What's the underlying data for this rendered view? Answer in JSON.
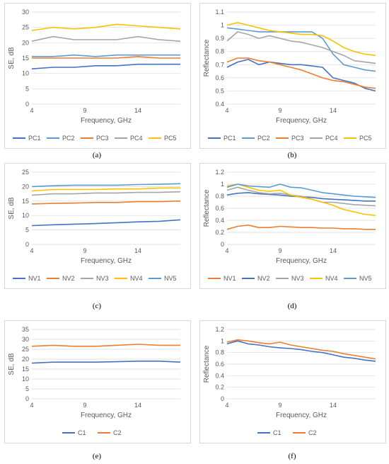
{
  "captions": [
    "(a)",
    "(b)",
    "(c)",
    "(d)",
    "(e)",
    "(f)"
  ],
  "chart_data": [
    {
      "type": "line",
      "caption": "(a)",
      "title": "",
      "xlabel": "Frequency, GHz",
      "ylabel": "SE, dB",
      "xlim": [
        4,
        18
      ],
      "ylim": [
        0,
        30
      ],
      "xticks": [
        4,
        9,
        14
      ],
      "yticks": [
        0,
        5,
        10,
        15,
        20,
        25,
        30
      ],
      "grid": true,
      "legend": "bottom",
      "x": [
        4,
        6,
        8,
        10,
        12,
        14,
        16,
        18
      ],
      "series": [
        {
          "name": "PC1",
          "color": "#4472c4",
          "values": [
            11.5,
            12,
            12,
            12.5,
            12.5,
            13,
            13,
            13
          ]
        },
        {
          "name": "PC2",
          "color": "#5b9bd5",
          "values": [
            15.5,
            15.5,
            16,
            15.5,
            16,
            16,
            16,
            16
          ]
        },
        {
          "name": "PC3",
          "color": "#ed7d31",
          "values": [
            15,
            15,
            15,
            15,
            15,
            15.5,
            15,
            15
          ]
        },
        {
          "name": "PC4",
          "color": "#a5a5a5",
          "values": [
            20.5,
            22,
            21,
            21,
            21,
            22,
            21,
            20.5
          ]
        },
        {
          "name": "PC5",
          "color": "#ffc000",
          "values": [
            24,
            25,
            24.5,
            25,
            26,
            25.5,
            25,
            24.5
          ]
        }
      ]
    },
    {
      "type": "line",
      "caption": "(b)",
      "title": "",
      "xlabel": "Frequency, GHz",
      "ylabel": "Reflectance",
      "xlim": [
        4,
        18
      ],
      "ylim": [
        0.4,
        1.1
      ],
      "xticks": [
        4,
        9,
        14
      ],
      "yticks": [
        0.4,
        0.5,
        0.6,
        0.7,
        0.8,
        0.9,
        1,
        1.1
      ],
      "grid": true,
      "legend": "bottom",
      "x": [
        4,
        5,
        6,
        7,
        8,
        9,
        10,
        11,
        12,
        13,
        14,
        15,
        16,
        17,
        18
      ],
      "series": [
        {
          "name": "PC1",
          "color": "#4472c4",
          "values": [
            0.68,
            0.72,
            0.74,
            0.7,
            0.72,
            0.71,
            0.7,
            0.7,
            0.69,
            0.68,
            0.6,
            0.58,
            0.56,
            0.52,
            0.5
          ]
        },
        {
          "name": "PC2",
          "color": "#5b9bd5",
          "values": [
            0.98,
            0.97,
            0.96,
            0.95,
            0.95,
            0.95,
            0.95,
            0.95,
            0.95,
            0.9,
            0.78,
            0.7,
            0.68,
            0.66,
            0.65
          ]
        },
        {
          "name": "PC3",
          "color": "#ed7d31",
          "values": [
            0.72,
            0.75,
            0.75,
            0.73,
            0.72,
            0.7,
            0.68,
            0.66,
            0.63,
            0.6,
            0.58,
            0.57,
            0.55,
            0.53,
            0.52
          ]
        },
        {
          "name": "PC4",
          "color": "#a5a5a5",
          "values": [
            0.88,
            0.95,
            0.93,
            0.9,
            0.92,
            0.9,
            0.88,
            0.87,
            0.85,
            0.83,
            0.8,
            0.77,
            0.73,
            0.72,
            0.71
          ]
        },
        {
          "name": "PC5",
          "color": "#ffc000",
          "values": [
            1.0,
            1.02,
            1.0,
            0.98,
            0.96,
            0.95,
            0.94,
            0.93,
            0.93,
            0.92,
            0.88,
            0.83,
            0.8,
            0.78,
            0.77
          ]
        }
      ]
    },
    {
      "type": "line",
      "caption": "(c)",
      "title": "",
      "xlabel": "Frequency, GHz",
      "ylabel": "SE, dB",
      "xlim": [
        4,
        18
      ],
      "ylim": [
        0,
        25
      ],
      "xticks": [
        4,
        9,
        14
      ],
      "yticks": [
        0,
        5,
        10,
        15,
        20,
        25
      ],
      "grid": true,
      "legend": "bottom",
      "x": [
        4,
        6,
        8,
        10,
        12,
        14,
        16,
        18
      ],
      "series": [
        {
          "name": "NV1",
          "color": "#4472c4",
          "values": [
            6.5,
            6.8,
            7,
            7.2,
            7.5,
            7.8,
            8,
            8.5
          ]
        },
        {
          "name": "NV2",
          "color": "#ed7d31",
          "values": [
            14,
            14.2,
            14.3,
            14.5,
            14.5,
            14.8,
            14.8,
            15
          ]
        },
        {
          "name": "NV3",
          "color": "#a5a5a5",
          "values": [
            17,
            17.5,
            17.5,
            17.8,
            17.8,
            18,
            18,
            18.2
          ]
        },
        {
          "name": "NV4",
          "color": "#ffc000",
          "values": [
            18.5,
            19,
            19,
            19,
            19.2,
            19.2,
            19.5,
            19.5
          ]
        },
        {
          "name": "NV5",
          "color": "#5b9bd5",
          "values": [
            20,
            20.3,
            20.5,
            20.5,
            20.5,
            20.7,
            20.8,
            21
          ]
        }
      ]
    },
    {
      "type": "line",
      "caption": "(d)",
      "title": "",
      "xlabel": "Frequency, GHz",
      "ylabel": "Reflectance",
      "xlim": [
        4,
        18
      ],
      "ylim": [
        0,
        1.2
      ],
      "xticks": [
        4,
        9,
        14
      ],
      "yticks": [
        0,
        0.2,
        0.4,
        0.6,
        0.8,
        1,
        1.2
      ],
      "grid": true,
      "legend": "bottom",
      "x": [
        4,
        5,
        6,
        7,
        8,
        9,
        10,
        11,
        12,
        13,
        14,
        15,
        16,
        17,
        18
      ],
      "series": [
        {
          "name": "NV1",
          "color": "#ed7d31",
          "values": [
            0.25,
            0.3,
            0.32,
            0.28,
            0.28,
            0.3,
            0.29,
            0.28,
            0.28,
            0.27,
            0.27,
            0.26,
            0.26,
            0.25,
            0.25
          ]
        },
        {
          "name": "NV2",
          "color": "#4472c4",
          "values": [
            0.82,
            0.85,
            0.86,
            0.84,
            0.83,
            0.82,
            0.8,
            0.79,
            0.78,
            0.76,
            0.75,
            0.74,
            0.73,
            0.72,
            0.72
          ]
        },
        {
          "name": "NV3",
          "color": "#a5a5a5",
          "values": [
            0.9,
            0.95,
            0.9,
            0.86,
            0.84,
            0.85,
            0.82,
            0.8,
            0.75,
            0.7,
            0.7,
            0.68,
            0.66,
            0.65,
            0.64
          ]
        },
        {
          "name": "NV4",
          "color": "#ffc000",
          "values": [
            0.97,
            1.0,
            0.95,
            0.9,
            0.88,
            0.9,
            0.82,
            0.78,
            0.75,
            0.7,
            0.65,
            0.58,
            0.54,
            0.5,
            0.48
          ]
        },
        {
          "name": "NV5",
          "color": "#5b9bd5",
          "values": [
            0.95,
            1.0,
            0.97,
            0.96,
            0.95,
            1.0,
            0.95,
            0.94,
            0.9,
            0.86,
            0.84,
            0.82,
            0.8,
            0.79,
            0.78
          ]
        }
      ]
    },
    {
      "type": "line",
      "caption": "(e)",
      "title": "",
      "xlabel": "Frequency, GHz",
      "ylabel": "SE, dB",
      "xlim": [
        4,
        18
      ],
      "ylim": [
        0,
        35
      ],
      "xticks": [
        4,
        9,
        14
      ],
      "yticks": [
        0,
        5,
        10,
        15,
        20,
        25,
        30,
        35
      ],
      "grid": true,
      "legend": "bottom",
      "x": [
        4,
        6,
        8,
        10,
        12,
        14,
        16,
        18
      ],
      "series": [
        {
          "name": "C1",
          "color": "#4472c4",
          "values": [
            18,
            18.5,
            18.5,
            18.5,
            18.7,
            19,
            19,
            18.5
          ]
        },
        {
          "name": "C2",
          "color": "#ed7d31",
          "values": [
            26.5,
            27,
            26.5,
            26.5,
            27,
            27.5,
            27,
            27
          ]
        }
      ]
    },
    {
      "type": "line",
      "caption": "(f)",
      "title": "",
      "xlabel": "Frequency, GHz",
      "ylabel": "Reflectance",
      "xlim": [
        4,
        18
      ],
      "ylim": [
        0,
        1.2
      ],
      "xticks": [
        4,
        9,
        14
      ],
      "yticks": [
        0,
        0.2,
        0.4,
        0.6,
        0.8,
        1,
        1.2
      ],
      "grid": true,
      "legend": "bottom",
      "x": [
        4,
        5,
        6,
        7,
        8,
        9,
        10,
        11,
        12,
        13,
        14,
        15,
        16,
        17,
        18
      ],
      "series": [
        {
          "name": "C1",
          "color": "#4472c4",
          "values": [
            0.95,
            1.0,
            0.95,
            0.93,
            0.9,
            0.88,
            0.87,
            0.85,
            0.82,
            0.8,
            0.76,
            0.72,
            0.7,
            0.67,
            0.65
          ]
        },
        {
          "name": "C2",
          "color": "#ed7d31",
          "values": [
            0.98,
            1.02,
            1.0,
            0.97,
            0.95,
            0.98,
            0.93,
            0.9,
            0.87,
            0.84,
            0.82,
            0.78,
            0.75,
            0.72,
            0.69
          ]
        }
      ]
    }
  ]
}
